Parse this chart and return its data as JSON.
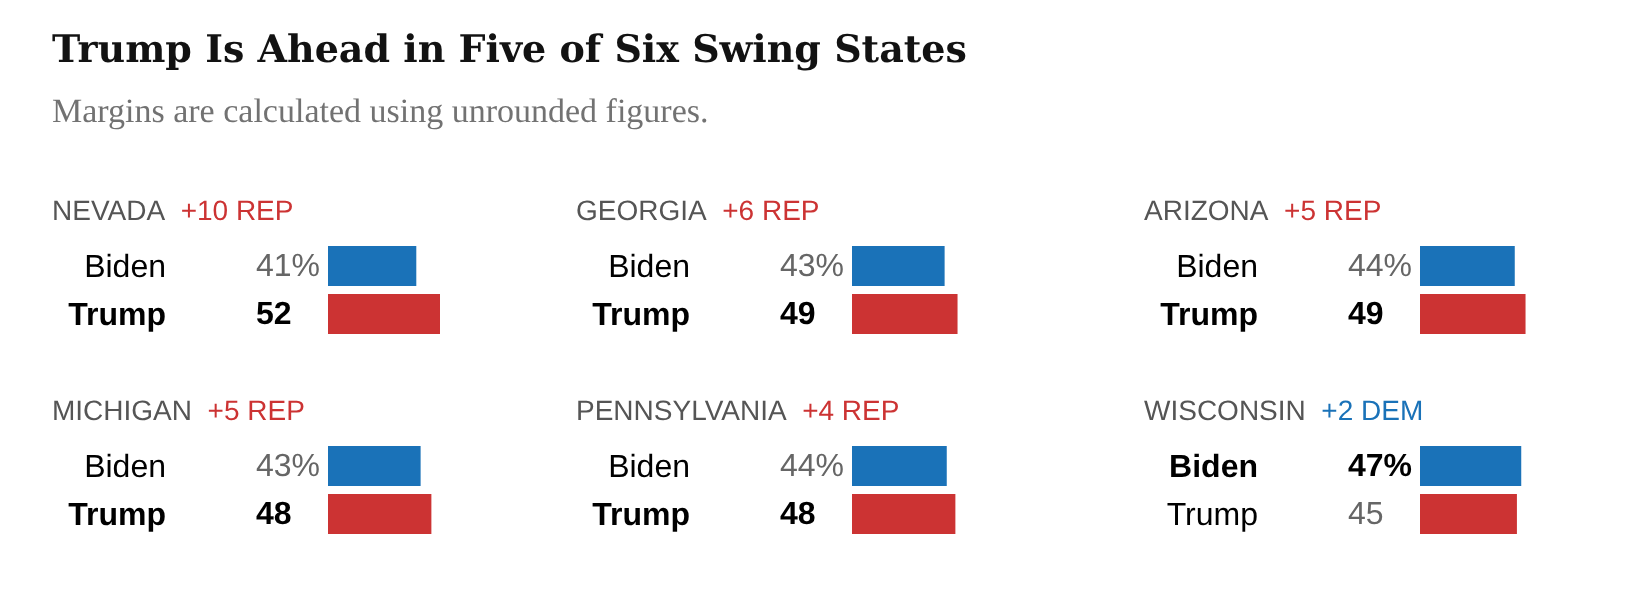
{
  "chart_data": [
    {
      "type": "other",
      "title": "Trump Is Ahead in Five of Six Swing States",
      "subtitle": "Margins are calculated using unrounded figures."
    },
    {
      "type": "bar",
      "orientation": "horizontal",
      "title": "NEVADA",
      "subtitle": "+10 REP",
      "categories": [
        "Biden",
        "Trump"
      ],
      "values": [
        41,
        52
      ],
      "colors": [
        "#1a72b8",
        "#cc3333"
      ],
      "value_labels": [
        "41%",
        "52"
      ],
      "tick_labels": "y",
      "grid": false,
      "legend": false
    },
    {
      "type": "bar",
      "orientation": "horizontal",
      "title": "GEORGIA",
      "subtitle": "+6 REP",
      "categories": [
        "Biden",
        "Trump"
      ],
      "values": [
        43,
        49
      ],
      "colors": [
        "#1a72b8",
        "#cc3333"
      ],
      "value_labels": [
        "43%",
        "49"
      ],
      "tick_labels": "y",
      "grid": false,
      "legend": false
    },
    {
      "type": "bar",
      "orientation": "horizontal",
      "title": "ARIZONA",
      "subtitle": "+5 REP",
      "categories": [
        "Biden",
        "Trump"
      ],
      "values": [
        44,
        49
      ],
      "colors": [
        "#1a72b8",
        "#cc3333"
      ],
      "value_labels": [
        "44%",
        "49"
      ],
      "tick_labels": "y",
      "grid": false,
      "legend": false
    },
    {
      "type": "bar",
      "orientation": "horizontal",
      "title": "MICHIGAN",
      "subtitle": "+5 REP",
      "categories": [
        "Biden",
        "Trump"
      ],
      "values": [
        43,
        48
      ],
      "colors": [
        "#1a72b8",
        "#cc3333"
      ],
      "value_labels": [
        "43%",
        "48"
      ],
      "tick_labels": "y",
      "grid": false,
      "legend": false
    },
    {
      "type": "bar",
      "orientation": "horizontal",
      "title": "PENNSYLVANIA",
      "subtitle": "+4 REP",
      "categories": [
        "Biden",
        "Trump"
      ],
      "values": [
        44,
        48
      ],
      "colors": [
        "#1a72b8",
        "#cc3333"
      ],
      "value_labels": [
        "44%",
        "48"
      ],
      "tick_labels": "y",
      "grid": false,
      "legend": false
    },
    {
      "type": "bar",
      "orientation": "horizontal",
      "title": "WISCONSIN",
      "subtitle": "+2 DEM",
      "categories": [
        "Biden",
        "Trump"
      ],
      "values": [
        47,
        45
      ],
      "colors": [
        "#1a72b8",
        "#cc3333"
      ],
      "value_labels": [
        "47%",
        "45"
      ],
      "tick_labels": "y",
      "grid": false,
      "legend": false
    }
  ]
}
